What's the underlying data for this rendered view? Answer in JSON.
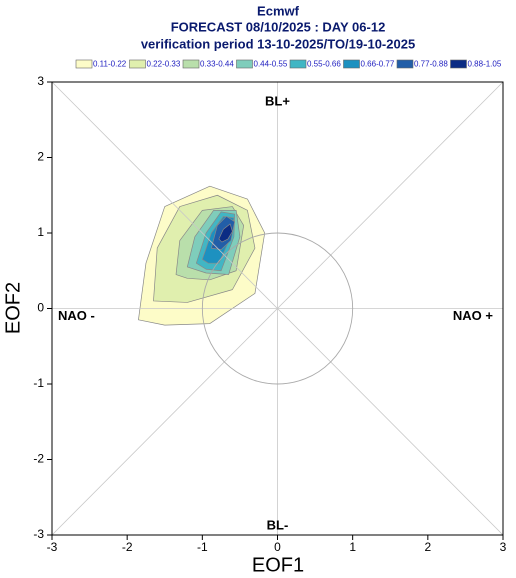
{
  "chart_data": {
    "type": "contour",
    "title": [
      "Ecmwf",
      "FORECAST 08/10/2025 : DAY 06-12",
      "verification period 13-10-2025/TO/19-10-2025"
    ],
    "xlabel": "EOF1",
    "ylabel": "EOF2",
    "xlim": [
      -3,
      3
    ],
    "ylim": [
      -3,
      3
    ],
    "xticks": [
      -3,
      -2,
      -1,
      0,
      1,
      2,
      3
    ],
    "yticks": [
      -3,
      -2,
      -1,
      0,
      1,
      2,
      3
    ],
    "regions": {
      "top": "BL+",
      "bottom": "BL-",
      "left": "NAO -",
      "right": "NAO +"
    },
    "series": [
      {
        "name": "0.11-0.22",
        "color": "#fdfcc8",
        "x": [
          -1.85,
          -1.75,
          -1.5,
          -0.9,
          -0.4,
          -0.17,
          -0.3,
          -0.9,
          -1.5
        ],
        "y": [
          -0.15,
          0.6,
          1.35,
          1.62,
          1.45,
          1.0,
          0.2,
          -0.2,
          -0.22
        ]
      },
      {
        "name": "0.22-0.33",
        "color": "#e0efae",
        "x": [
          -1.65,
          -1.6,
          -1.3,
          -0.8,
          -0.4,
          -0.3,
          -0.6,
          -1.2
        ],
        "y": [
          0.1,
          0.8,
          1.35,
          1.5,
          1.3,
          0.8,
          0.25,
          0.08
        ]
      },
      {
        "name": "0.33-0.44",
        "color": "#b9dfab",
        "x": [
          -1.35,
          -1.3,
          -1.0,
          -0.6,
          -0.45,
          -0.55,
          -0.9,
          -1.2
        ],
        "y": [
          0.45,
          0.9,
          1.3,
          1.35,
          1.1,
          0.5,
          0.38,
          0.4
        ]
      },
      {
        "name": "0.44-0.55",
        "color": "#7fcdbb",
        "x": [
          -1.2,
          -1.1,
          -0.85,
          -0.55,
          -0.5,
          -0.65,
          -0.95
        ],
        "y": [
          0.55,
          0.95,
          1.3,
          1.3,
          0.95,
          0.45,
          0.47
        ]
      },
      {
        "name": "0.55-0.66",
        "color": "#41b6c4",
        "x": [
          -1.08,
          -0.95,
          -0.75,
          -0.57,
          -0.58,
          -0.75,
          -0.95
        ],
        "y": [
          0.6,
          1.0,
          1.28,
          1.25,
          0.95,
          0.5,
          0.52
        ]
      },
      {
        "name": "0.66-0.77",
        "color": "#1d91c0",
        "x": [
          -1.0,
          -0.88,
          -0.72,
          -0.58,
          -0.62,
          -0.78,
          -0.92
        ],
        "y": [
          0.65,
          1.0,
          1.22,
          1.2,
          0.95,
          0.6,
          0.6
        ]
      },
      {
        "name": "0.77-0.88",
        "color": "#225ea8",
        "x": [
          -0.88,
          -0.8,
          -0.68,
          -0.57,
          -0.62,
          -0.75
        ],
        "y": [
          0.8,
          1.1,
          1.22,
          1.15,
          0.9,
          0.78
        ]
      },
      {
        "name": "0.88-1.05",
        "color": "#0c2c84",
        "x": [
          -0.78,
          -0.72,
          -0.63,
          -0.6,
          -0.66,
          -0.74
        ],
        "y": [
          0.92,
          1.05,
          1.12,
          1.02,
          0.92,
          0.88
        ]
      }
    ]
  }
}
